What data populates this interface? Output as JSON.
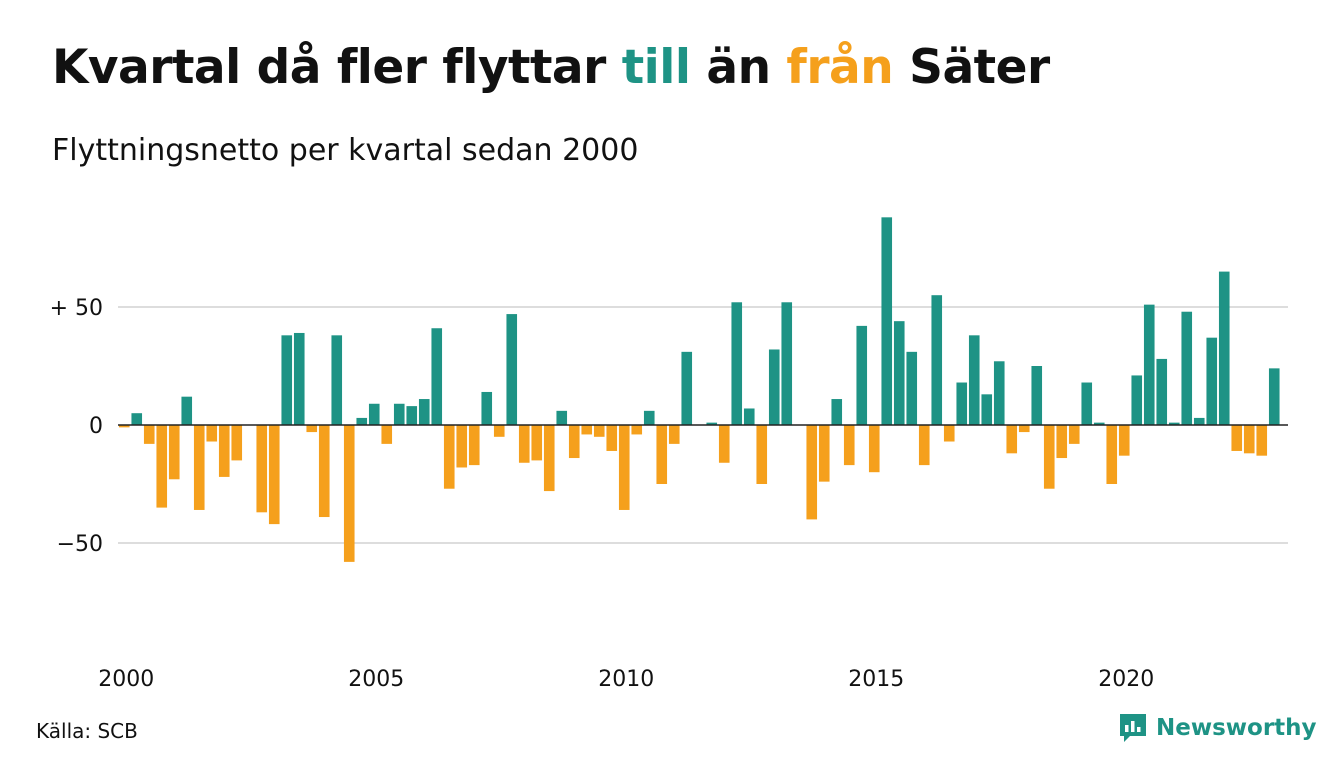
{
  "header": {
    "title_part1": "Kvartal då fler flyttar ",
    "title_pos": "till",
    "title_part2": " än ",
    "title_neg": "från",
    "title_part3": " Säter",
    "subtitle": "Flyttningsnetto per kvartal sedan 2000"
  },
  "footer": {
    "source": "Källa: SCB",
    "brand": "Newsworthy",
    "brand_icon": "bar-chart-speech-bubble-icon"
  },
  "colors": {
    "positive": "#1e9385",
    "negative": "#f5a01c",
    "grid": "#dddddd",
    "zero_line": "#222222"
  },
  "chart_data": {
    "type": "bar",
    "title": "Kvartal då fler flyttar till än från Säter",
    "subtitle": "Flyttningsnetto per kvartal sedan 2000",
    "xlabel": "",
    "ylabel": "",
    "ylim": [
      -88,
      88
    ],
    "y_ticks": [
      {
        "value": 50,
        "label": "+ 50"
      },
      {
        "value": 0,
        "label": "0"
      },
      {
        "value": -50,
        "label": "−50"
      }
    ],
    "x_ticks": [
      "2000",
      "2005",
      "2010",
      "2015",
      "2020"
    ],
    "grid": true,
    "start": "2000 Q1",
    "frequency": "quarterly",
    "values": [
      -1,
      5,
      -8,
      -35,
      -23,
      12,
      -36,
      -7,
      -22,
      -15,
      0,
      -37,
      -42,
      38,
      39,
      -3,
      -39,
      38,
      -58,
      3,
      9,
      -8,
      9,
      8,
      11,
      41,
      -27,
      -18,
      -17,
      14,
      -5,
      47,
      -16,
      -15,
      -28,
      6,
      -14,
      -4,
      -5,
      -11,
      -36,
      -4,
      6,
      -25,
      -8,
      31,
      0,
      1,
      -16,
      52,
      7,
      -25,
      32,
      52,
      0,
      -40,
      -24,
      11,
      -17,
      42,
      -20,
      88,
      44,
      31,
      -17,
      55,
      -7,
      18,
      38,
      13,
      27,
      -12,
      -3,
      25,
      -27,
      -14,
      -8,
      18,
      1,
      -25,
      -13,
      21,
      51,
      28,
      1,
      48,
      3,
      37,
      65,
      -11,
      -12,
      -13,
      24
    ]
  }
}
